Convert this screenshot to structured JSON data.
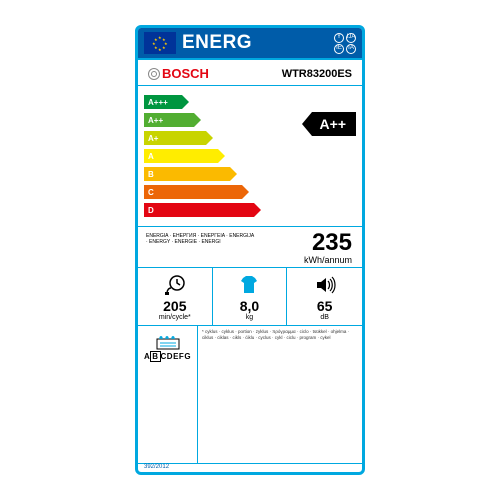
{
  "header": {
    "title": "ENERG",
    "lang_codes": [
      "Y",
      "IJA",
      "IE",
      "IA"
    ],
    "eu_flag_bg": "#003399",
    "eu_star_color": "#ffcc00",
    "bg": "#005ca9"
  },
  "brand": {
    "name": "BOSCH",
    "color": "#e30613",
    "model": "WTR83200ES"
  },
  "spectrum": {
    "rows": [
      {
        "grade": "A+++",
        "color": "#009640",
        "width": 38
      },
      {
        "grade": "A++",
        "color": "#52ae32",
        "width": 50
      },
      {
        "grade": "A+",
        "color": "#c8d400",
        "width": 62
      },
      {
        "grade": "A",
        "color": "#ffed00",
        "width": 74
      },
      {
        "grade": "B",
        "color": "#fbba00",
        "width": 86
      },
      {
        "grade": "C",
        "color": "#ec6608",
        "width": 98
      },
      {
        "grade": "D",
        "color": "#e30613",
        "width": 110
      }
    ],
    "rating": "A++"
  },
  "consumption": {
    "value": "235",
    "unit": "kWh/annum",
    "energia_words": "ENERGIA · ЕНЕРГИЯ · ΕΝΕΡΓΕΙΑ · ENERGIJA · ENERGY · ENERGIE · ENERGI"
  },
  "specs": {
    "time": {
      "value": "205",
      "unit": "min/cycle*"
    },
    "load": {
      "value": "8,0",
      "unit": "kg"
    },
    "noise": {
      "value": "65",
      "unit": "dB"
    }
  },
  "condenser": {
    "letters": "ABCDEFG",
    "highlight": "B"
  },
  "fineprint": "* cyklus · cyklus · portion · zyklus · πρόγραμμα · ciclo · tsükkel · ohjelma · ciklus · ciklas · cikls · ċiklu · cyclus · cykl · ciclu · program · cykel",
  "regulation": "392/2012",
  "border_color": "#00a8e0",
  "colors": {
    "black": "#000000",
    "white": "#ffffff"
  }
}
